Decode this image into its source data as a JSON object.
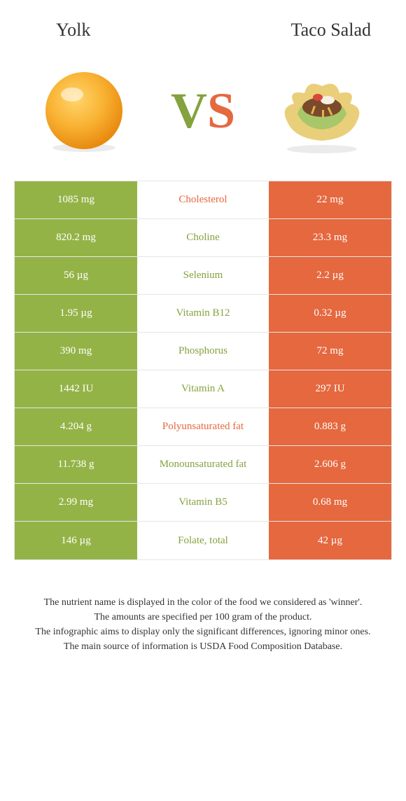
{
  "header": {
    "left": "Yolk",
    "right": "Taco Salad"
  },
  "colors": {
    "green": "#84a23e",
    "orange": "#e5683f",
    "cell_green": "#94b347",
    "cell_orange": "#e5683f",
    "border": "#e6e6e6",
    "bg": "#ffffff",
    "text": "#333333"
  },
  "vs": {
    "v": "V",
    "s": "S"
  },
  "rows": [
    {
      "left": "1085 mg",
      "mid": "Cholesterol",
      "right": "22 mg",
      "winner": "orange"
    },
    {
      "left": "820.2 mg",
      "mid": "Choline",
      "right": "23.3 mg",
      "winner": "green"
    },
    {
      "left": "56 µg",
      "mid": "Selenium",
      "right": "2.2 µg",
      "winner": "green"
    },
    {
      "left": "1.95 µg",
      "mid": "Vitamin B12",
      "right": "0.32 µg",
      "winner": "green"
    },
    {
      "left": "390 mg",
      "mid": "Phosphorus",
      "right": "72 mg",
      "winner": "green"
    },
    {
      "left": "1442 IU",
      "mid": "Vitamin A",
      "right": "297 IU",
      "winner": "green"
    },
    {
      "left": "4.204 g",
      "mid": "Polyunsaturated fat",
      "right": "0.883 g",
      "winner": "orange"
    },
    {
      "left": "11.738 g",
      "mid": "Monounsaturated fat",
      "right": "2.606 g",
      "winner": "green"
    },
    {
      "left": "2.99 mg",
      "mid": "Vitamin B5",
      "right": "0.68 mg",
      "winner": "green"
    },
    {
      "left": "146 µg",
      "mid": "Folate, total",
      "right": "42 µg",
      "winner": "green"
    }
  ],
  "footer": {
    "line1": "The nutrient name is displayed in the color of the food we considered as 'winner'.",
    "line2": "The amounts are specified per 100 gram of the product.",
    "line3": "The infographic aims to display only the significant differences, ignoring minor ones.",
    "line4": "The main source of information is USDA Food Composition Database."
  }
}
